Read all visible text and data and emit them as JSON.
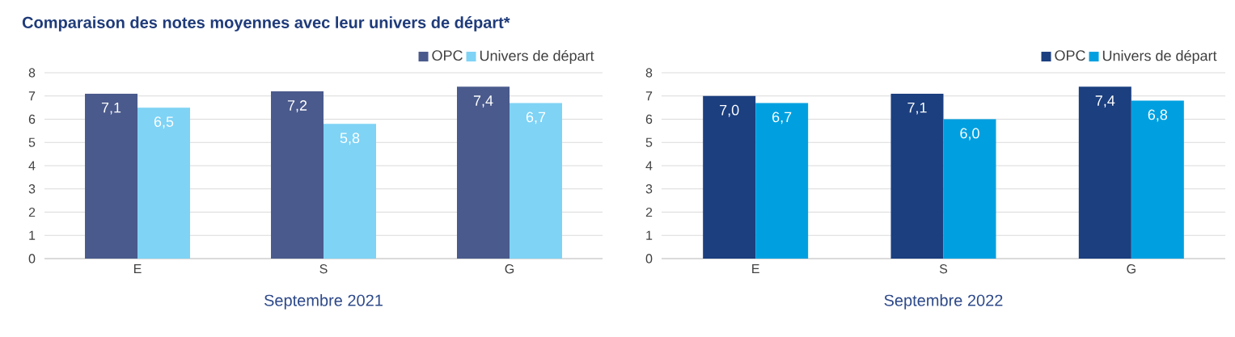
{
  "chart_data": [
    {
      "type": "bar",
      "title": "Comparaison des notes moyennes avec leur univers de départ*",
      "xlabel": "Septembre 2021",
      "categories": [
        "E",
        "S",
        "G"
      ],
      "series": [
        {
          "name": "OPC",
          "color": "#4a5a8c",
          "values": [
            7.1,
            7.2,
            7.4
          ],
          "value_labels": [
            "7,1",
            "7,2",
            "7,4"
          ]
        },
        {
          "name": "Univers de départ",
          "color": "#7fd3f5",
          "values": [
            6.5,
            5.8,
            6.7
          ],
          "value_labels": [
            "6,5",
            "5,8",
            "6,7"
          ]
        }
      ],
      "ylim": [
        0,
        8
      ],
      "yticks": [
        0,
        1,
        2,
        3,
        4,
        5,
        6,
        7,
        8
      ],
      "grid": "y",
      "legend": "top right"
    },
    {
      "type": "bar",
      "xlabel": "Septembre 2022",
      "categories": [
        "E",
        "S",
        "G"
      ],
      "series": [
        {
          "name": "OPC",
          "color": "#1b3f7f",
          "values": [
            7.0,
            7.1,
            7.4
          ],
          "value_labels": [
            "7,0",
            "7,1",
            "7,4"
          ]
        },
        {
          "name": "Univers de départ",
          "color": "#00a0e0",
          "values": [
            6.7,
            6.0,
            6.8
          ],
          "value_labels": [
            "6,7",
            "6,0",
            "6,8"
          ]
        }
      ],
      "ylim": [
        0,
        8
      ],
      "yticks": [
        0,
        1,
        2,
        3,
        4,
        5,
        6,
        7,
        8
      ],
      "grid": "y",
      "legend": "top right"
    }
  ]
}
